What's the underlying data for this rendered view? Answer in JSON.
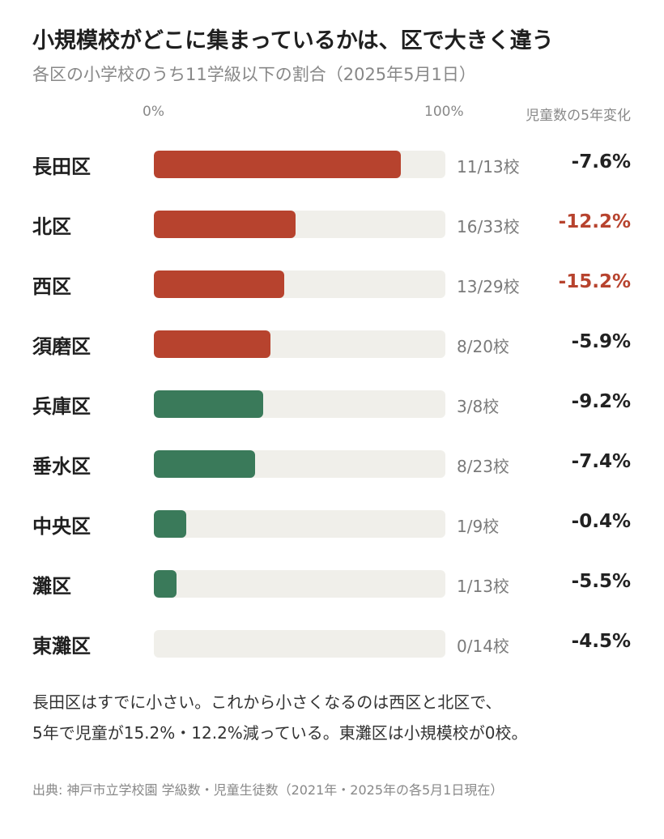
{
  "title": "小規模校がどこに集まっているかは、区で大きく違う",
  "subtitle": "各区の小学校のうち11学級以下の割合（2025年5月1日）",
  "colors": {
    "bar_red": "#b7432e",
    "bar_green": "#3a7a5a",
    "track": "#f0efea",
    "change_highlight": "#b7432e",
    "change_normal": "#222222"
  },
  "chart_data": {
    "type": "bar",
    "orientation": "horizontal",
    "axis_labels": {
      "min": "0%",
      "max": "100%"
    },
    "xlim": [
      0,
      100
    ],
    "change_header": "児童数の5年変化",
    "rows": [
      {
        "ward": "長田区",
        "small": 11,
        "total": 13,
        "count_label": "11/13校",
        "change": "-7.6%",
        "color": "red",
        "highlight": false
      },
      {
        "ward": "北区",
        "small": 16,
        "total": 33,
        "count_label": "16/33校",
        "change": "-12.2%",
        "color": "red",
        "highlight": true
      },
      {
        "ward": "西区",
        "small": 13,
        "total": 29,
        "count_label": "13/29校",
        "change": "-15.2%",
        "color": "red",
        "highlight": true
      },
      {
        "ward": "須磨区",
        "small": 8,
        "total": 20,
        "count_label": "8/20校",
        "change": "-5.9%",
        "color": "red",
        "highlight": false
      },
      {
        "ward": "兵庫区",
        "small": 3,
        "total": 8,
        "count_label": "3/8校",
        "change": "-9.2%",
        "color": "green",
        "highlight": false
      },
      {
        "ward": "垂水区",
        "small": 8,
        "total": 23,
        "count_label": "8/23校",
        "change": "-7.4%",
        "color": "green",
        "highlight": false
      },
      {
        "ward": "中央区",
        "small": 1,
        "total": 9,
        "count_label": "1/9校",
        "change": "-0.4%",
        "color": "green",
        "highlight": false
      },
      {
        "ward": "灘区",
        "small": 1,
        "total": 13,
        "count_label": "1/13校",
        "change": "-5.5%",
        "color": "green",
        "highlight": false
      },
      {
        "ward": "東灘区",
        "small": 0,
        "total": 14,
        "count_label": "0/14校",
        "change": "-4.5%",
        "color": "green",
        "highlight": false
      }
    ]
  },
  "note": {
    "line1": "長田区はすでに小さい。これから小さくなるのは西区と北区で、",
    "line2": "5年で児童が15.2%・12.2%減っている。東灘区は小規模校が0校。"
  },
  "source": "出典: 神戸市立学校園 学級数・児童生徒数（2021年・2025年の各5月1日現在）"
}
